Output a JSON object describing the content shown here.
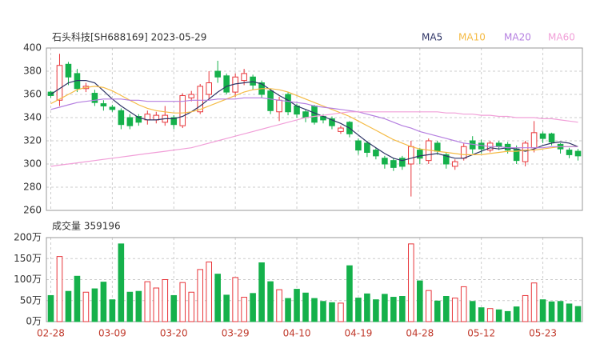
{
  "chart_data": [
    {
      "type": "candlestick",
      "title": "石头科技[SH688169] 2023-05-29",
      "up_color": "#e8363b",
      "down_color": "#15b14b",
      "open": [
        362,
        355,
        386,
        378,
        365,
        361,
        352,
        349,
        346,
        340,
        341,
        338,
        338,
        336,
        340,
        333,
        357,
        345,
        360,
        380,
        376,
        362,
        372,
        375,
        370,
        363,
        345,
        360,
        350,
        345,
        350,
        341,
        339,
        328,
        336,
        320,
        318,
        312,
        305,
        303,
        305,
        300,
        312,
        303,
        318,
        308,
        298,
        305,
        320,
        318,
        312,
        318,
        317,
        313,
        302,
        314,
        326,
        326,
        317,
        312,
        311
      ],
      "high": [
        363,
        395,
        388,
        382,
        370,
        364,
        355,
        351,
        348,
        343,
        343,
        346,
        345,
        350,
        342,
        361,
        363,
        369,
        380,
        389,
        378,
        378,
        382,
        377,
        372,
        365,
        358,
        362,
        352,
        347,
        351,
        343,
        341,
        333,
        337,
        322,
        320,
        314,
        307,
        305,
        307,
        320,
        314,
        322,
        320,
        310,
        304,
        318,
        324,
        321,
        320,
        320,
        319,
        316,
        320,
        337,
        328,
        327,
        318,
        314,
        313
      ],
      "low": [
        357,
        350,
        368,
        362,
        362,
        350,
        346,
        345,
        330,
        330,
        333,
        334,
        335,
        333,
        330,
        331,
        354,
        343,
        356,
        370,
        360,
        358,
        368,
        364,
        357,
        343,
        337,
        342,
        340,
        336,
        334,
        335,
        330,
        326,
        323,
        308,
        306,
        304,
        296,
        294,
        295,
        272,
        300,
        300,
        308,
        296,
        295,
        303,
        309,
        309,
        310,
        312,
        309,
        300,
        298,
        310,
        318,
        316,
        309,
        305,
        303
      ],
      "close": [
        359,
        385,
        375,
        365,
        367,
        353,
        350,
        347,
        334,
        333,
        336,
        343,
        342,
        342,
        334,
        359,
        360,
        367,
        370,
        375,
        362,
        375,
        378,
        368,
        360,
        346,
        355,
        345,
        343,
        340,
        336,
        338,
        333,
        331,
        326,
        312,
        310,
        307,
        300,
        297,
        298,
        315,
        305,
        320,
        311,
        300,
        302,
        315,
        313,
        313,
        318,
        315,
        312,
        303,
        318,
        327,
        322,
        319,
        313,
        308,
        307
      ],
      "series": [
        {
          "name": "MA5",
          "color": "#2e3466",
          "values": [
            360,
            365,
            370,
            372,
            372,
            370,
            363,
            356,
            350,
            345,
            340,
            338,
            338,
            339,
            339,
            341,
            345,
            350,
            356,
            362,
            367,
            369,
            370,
            371,
            369,
            364,
            359,
            355,
            350,
            347,
            344,
            341,
            338,
            335,
            331,
            325,
            319,
            314,
            309,
            305,
            303,
            305,
            307,
            308,
            309,
            307,
            305,
            305,
            308,
            311,
            314,
            313,
            314,
            313,
            311,
            313,
            316,
            318,
            319,
            318,
            315
          ]
        },
        {
          "name": "MA10",
          "color": "#f5bb45",
          "values": [
            352,
            356,
            360,
            364,
            366,
            367,
            366,
            363,
            359,
            355,
            351,
            348,
            346,
            345,
            344,
            344,
            345,
            347,
            350,
            353,
            356,
            359,
            362,
            364,
            365,
            365,
            364,
            362,
            359,
            356,
            353,
            350,
            347,
            344,
            341,
            337,
            333,
            329,
            325,
            321,
            318,
            315,
            313,
            312,
            311,
            310,
            309,
            308,
            308,
            308,
            309,
            310,
            311,
            311,
            312,
            312,
            313,
            314,
            315,
            315,
            315
          ]
        },
        {
          "name": "MA20",
          "color": "#b57fe0",
          "values": [
            347,
            349,
            351,
            353,
            354,
            355,
            356,
            356,
            356,
            355,
            355,
            354,
            354,
            354,
            354,
            354,
            355,
            355,
            355,
            356,
            356,
            356,
            357,
            357,
            357,
            356,
            355,
            354,
            353,
            352,
            350,
            349,
            348,
            347,
            346,
            345,
            343,
            341,
            339,
            336,
            333,
            331,
            328,
            326,
            324,
            322,
            320,
            318,
            317,
            316,
            315,
            315,
            314,
            314,
            314,
            314,
            314,
            315,
            315,
            315,
            315
          ]
        },
        {
          "name": "MA60",
          "color": "#f19fd8",
          "values": [
            298,
            299,
            300,
            301,
            302,
            303,
            304,
            305,
            306,
            307,
            308,
            309,
            310,
            311,
            312,
            313,
            314,
            316,
            318,
            320,
            322,
            324,
            326,
            328,
            330,
            332,
            334,
            336,
            338,
            340,
            341,
            342,
            343,
            344,
            345,
            345,
            345,
            345,
            345,
            345,
            345,
            345,
            345,
            345,
            345,
            344,
            344,
            343,
            343,
            342,
            342,
            341,
            341,
            340,
            340,
            340,
            339,
            339,
            338,
            337,
            336
          ]
        }
      ],
      "ylim": [
        260,
        400
      ],
      "yticks": [
        260,
        280,
        300,
        320,
        340,
        360,
        380,
        400
      ],
      "grid": true
    },
    {
      "type": "bar",
      "title": "成交量 359196",
      "categories": [
        "02-28",
        null,
        null,
        null,
        null,
        null,
        null,
        "03-09",
        null,
        null,
        null,
        null,
        null,
        null,
        "03-20",
        null,
        null,
        null,
        null,
        null,
        null,
        "03-29",
        null,
        null,
        null,
        null,
        null,
        null,
        "04-10",
        null,
        null,
        null,
        null,
        null,
        null,
        "04-19",
        null,
        null,
        null,
        null,
        null,
        null,
        "04-28",
        null,
        null,
        null,
        null,
        null,
        null,
        "05-12",
        null,
        null,
        null,
        null,
        null,
        null,
        "05-23",
        null,
        null,
        null,
        null
      ],
      "values": [
        62,
        155,
        72,
        108,
        70,
        78,
        94,
        52,
        185,
        70,
        72,
        95,
        80,
        100,
        62,
        93,
        70,
        124,
        142,
        113,
        63,
        105,
        58,
        67,
        140,
        95,
        76,
        55,
        77,
        68,
        55,
        48,
        45,
        44,
        133,
        56,
        66,
        52,
        65,
        58,
        60,
        185,
        97,
        74,
        49,
        60,
        56,
        83,
        48,
        33,
        31,
        28,
        24,
        35,
        62,
        92,
        52,
        47,
        48,
        42,
        35.92
      ],
      "ylim": [
        0,
        200
      ],
      "yticks": [
        {
          "value": 0,
          "label": "0万"
        },
        {
          "value": 50,
          "label": "50万"
        },
        {
          "value": 100,
          "label": "100万"
        },
        {
          "value": 150,
          "label": "150万"
        },
        {
          "value": 200,
          "label": "200万"
        }
      ],
      "grid": true
    }
  ]
}
